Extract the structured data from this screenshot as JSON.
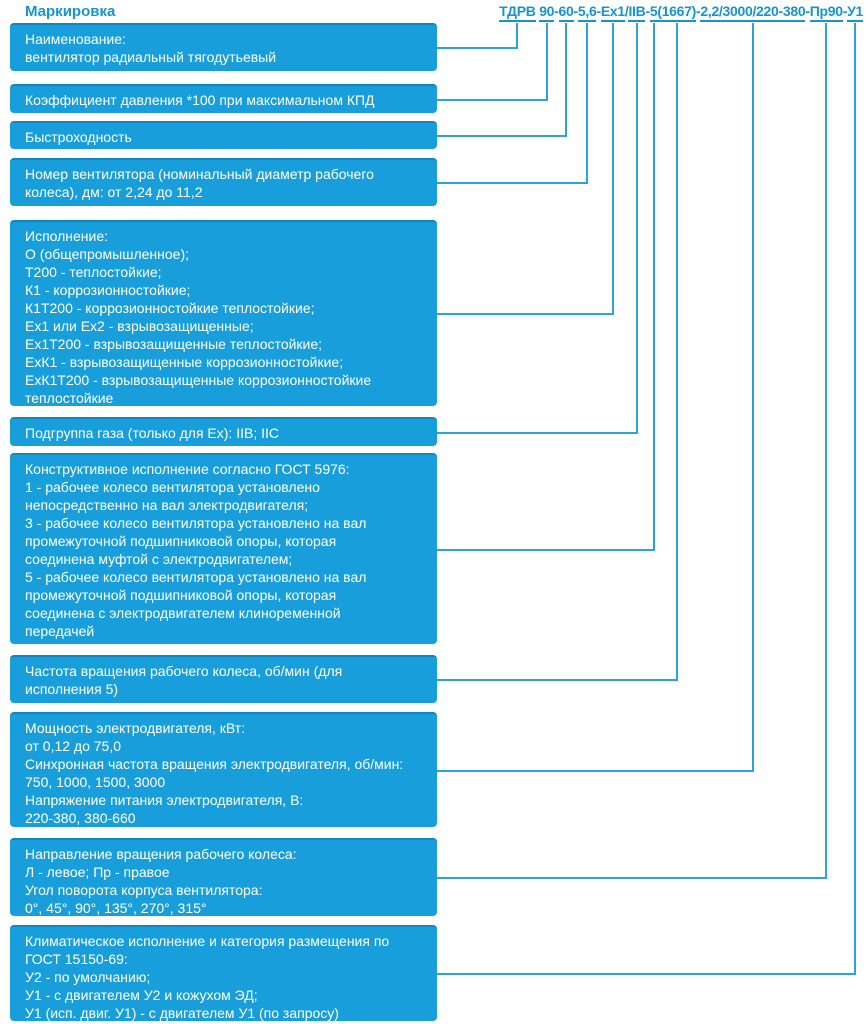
{
  "title": "Маркировка",
  "colors": {
    "accent_text": "#1793D3",
    "box_fill": "#189FDB",
    "box_top_edge": "#0E87C2",
    "connector_line": "#2AA4DB",
    "box_text": "#FFFFFF"
  },
  "marking": {
    "full": "ТДРВ 90-60-5,6-Ex1/IIB-5(1667)-2,2/3000/220-380-Пр90-У1",
    "parts": [
      {
        "sep": "",
        "seg": "ТДРВ"
      },
      {
        "sep": " ",
        "seg": "90"
      },
      {
        "sep": "-",
        "seg": "60"
      },
      {
        "sep": "-",
        "seg": "5,6"
      },
      {
        "sep": "-",
        "seg": "Ex1"
      },
      {
        "sep": "/",
        "seg": "IIB"
      },
      {
        "sep": "-",
        "seg": "5"
      },
      {
        "sep": "",
        "seg": "(1667)"
      },
      {
        "sep": "-",
        "seg": "2,2/3000/220-380"
      },
      {
        "sep": "-",
        "seg": "Пр90"
      },
      {
        "sep": "-",
        "seg": "У1"
      }
    ]
  },
  "boxes": [
    {
      "id": "name",
      "text": "Наименование:\nвентилятор радиальный тягодутьевый"
    },
    {
      "id": "pressure-coefficient",
      "text": "Коэффициент давления *100 при максимальном КПД"
    },
    {
      "id": "speed-coefficient",
      "text": "Быстроходность"
    },
    {
      "id": "fan-number",
      "text": "Номер вентилятора (номинальный диаметр рабочего\nколеса), дм: от 2,24 до 11,2"
    },
    {
      "id": "design",
      "text": "Исполнение:\nО (общепромышленное);\nТ200 - теплостойкие;\nК1 - коррозионностойкие;\nК1Т200 - коррозионностойкие теплостойкие;\nEx1 или Ex2 - взрывозащищенные;\nEx1Т200 - взрывозащищенные теплостойкие;\nExК1 - взрывозащищенные коррозионностойкие;\nExК1Т200 - взрывозащищенные коррозионностойкие\nтеплостойкие"
    },
    {
      "id": "gas-subgroup",
      "text": "Подгруппа газа (только для Ex): IIB; IIC"
    },
    {
      "id": "construction-design",
      "text": "Конструктивное исполнение согласно ГОСТ 5976:\n1 - рабочее колесо вентилятора установлено\nнепосредственно на вал электродвигателя;\n3 - рабочее колесо вентилятора установлено на вал\nпромежуточной подшипниковой опоры, которая\nсоединена муфтой с электродвигателем;\n5 - рабочее колесо вентилятора установлено на вал\nпромежуточной подшипниковой опоры, которая\nсоединена с электродвигателем клиноременной\nпередачей"
    },
    {
      "id": "impeller-speed",
      "text": "Частота вращения рабочего колеса, об/мин (для\nисполнения 5)"
    },
    {
      "id": "motor-parameters",
      "text": "Мощность электродвигателя, кВт:\nот 0,12 до 75,0\nСинхронная частота вращения электродвигателя, об/мин:\n750, 1000, 1500, 3000\nНапряжение питания электродвигателя, В:\n220-380, 380-660"
    },
    {
      "id": "rotation-direction",
      "text": "Направление вращения рабочего колеса:\nЛ - левое; Пр - правое\nУгол поворота корпуса вентилятора:\n0°, 45°, 90°, 135°, 270°, 315°"
    },
    {
      "id": "climatic-design",
      "text": "Климатическое исполнение и категория размещения по\nГОСТ 15150-69:\nУ2 - по умолчанию;\nУ1 - с двигателем У2 и кожухом ЭД;\nУ1 (исп. двиг. У1) - с двигателем У1 (по запросу)"
    }
  ]
}
